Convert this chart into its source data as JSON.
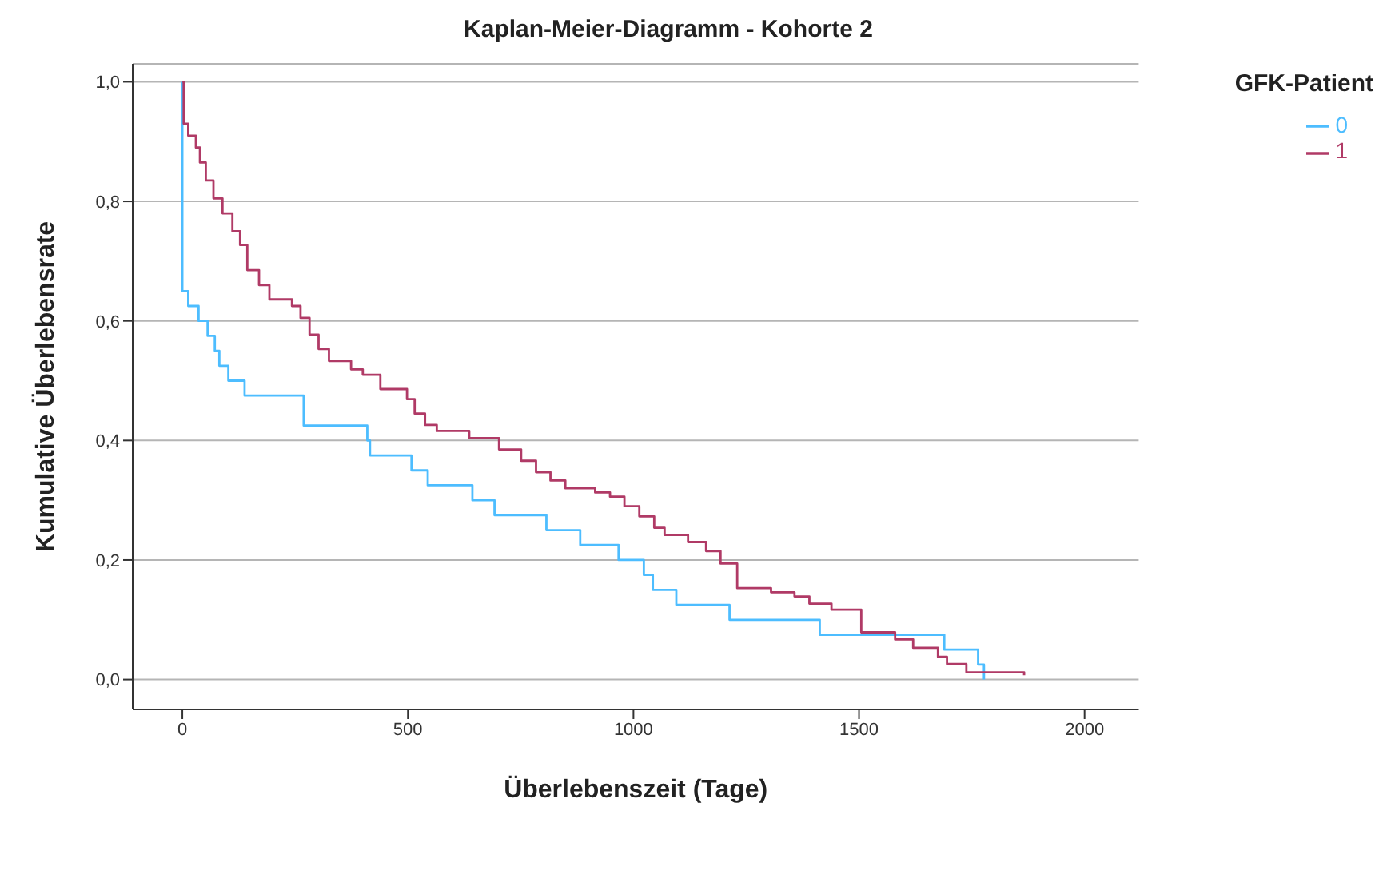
{
  "chart_data": {
    "type": "step",
    "title": "Kaplan-Meier-Diagramm - Kohorte 2",
    "xlabel": "Überlebenszeit (Tage)",
    "ylabel": "Kumulative Überlebensrate",
    "legend_title": "GFK-Patient",
    "xlim": [
      -110,
      2120
    ],
    "xticks": [
      0,
      500,
      1000,
      1500,
      2000
    ],
    "ylim": [
      -0.05,
      1.03
    ],
    "yticks": [
      {
        "value": 0,
        "label": "0,0"
      },
      {
        "value": 0.2,
        "label": "0,2"
      },
      {
        "value": 0.4,
        "label": "0,4"
      },
      {
        "value": 0.6,
        "label": "0,6"
      },
      {
        "value": 0.8,
        "label": "0,8"
      },
      {
        "value": 1,
        "label": "1,0"
      }
    ],
    "grid": "y",
    "legend": "top right",
    "marker": "none",
    "line_style": "solid",
    "series": [
      {
        "name": "0",
        "color": "#4dbdff",
        "x": [
          0,
          0,
          13,
          36,
          56,
          72,
          82,
          102,
          138,
          269,
          410,
          416,
          508,
          544,
          643,
          692,
          807,
          882,
          967,
          1023,
          1043,
          1095,
          1213,
          1413,
          1689,
          1764,
          1777
        ],
        "values": [
          1,
          0.65,
          0.625,
          0.6,
          0.575,
          0.55,
          0.525,
          0.5,
          0.475,
          0.425,
          0.4,
          0.375,
          0.35,
          0.325,
          0.3,
          0.275,
          0.25,
          0.225,
          0.2,
          0.175,
          0.15,
          0.125,
          0.1,
          0.075,
          0.05,
          0.025,
          0
        ]
      },
      {
        "name": "1",
        "color": "#b03a66",
        "x": [
          0,
          3,
          13,
          30,
          39,
          52,
          69,
          89,
          111,
          128,
          144,
          170,
          193,
          243,
          262,
          282,
          302,
          325,
          374,
          400,
          439,
          498,
          515,
          538,
          564,
          636,
          702,
          751,
          784,
          816,
          849,
          915,
          948,
          980,
          1013,
          1046,
          1069,
          1121,
          1161,
          1193,
          1230,
          1305,
          1357,
          1390,
          1439,
          1505,
          1580,
          1620,
          1675,
          1695,
          1738,
          1866
        ],
        "values": [
          1,
          0.93,
          0.91,
          0.89,
          0.865,
          0.835,
          0.805,
          0.78,
          0.75,
          0.727,
          0.685,
          0.66,
          0.636,
          0.625,
          0.605,
          0.577,
          0.553,
          0.533,
          0.519,
          0.51,
          0.486,
          0.469,
          0.445,
          0.426,
          0.416,
          0.404,
          0.385,
          0.366,
          0.347,
          0.333,
          0.32,
          0.313,
          0.306,
          0.29,
          0.273,
          0.254,
          0.242,
          0.23,
          0.215,
          0.194,
          0.153,
          0.146,
          0.139,
          0.127,
          0.117,
          0.079,
          0.067,
          0.053,
          0.038,
          0.026,
          0.012,
          0.007
        ]
      }
    ]
  }
}
